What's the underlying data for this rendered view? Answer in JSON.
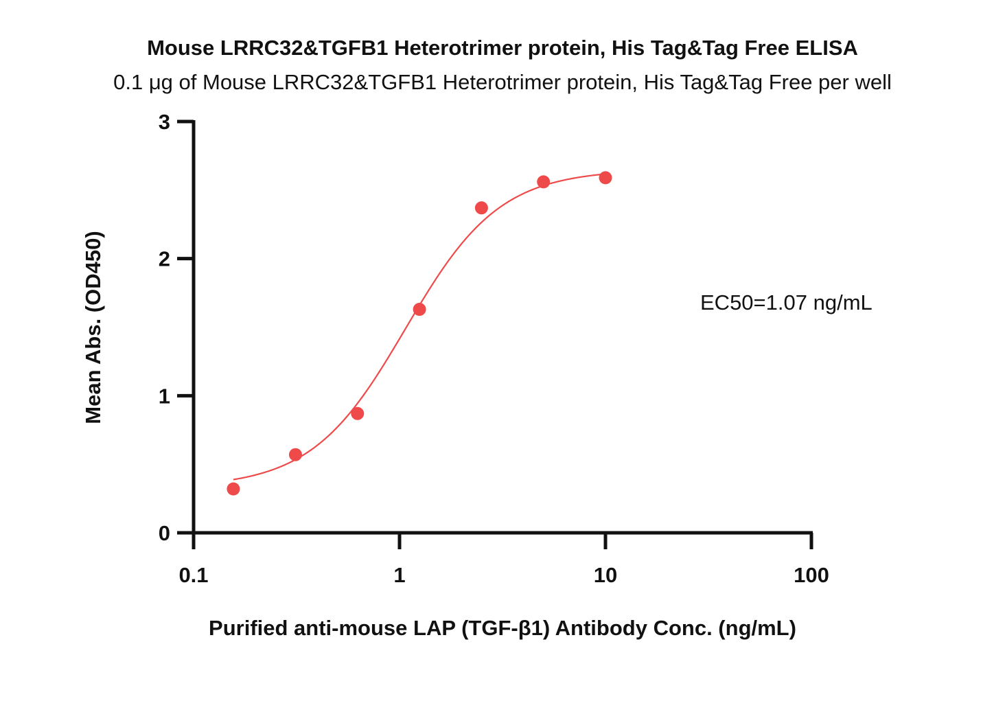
{
  "chart_data": {
    "type": "scatter",
    "title": "Mouse LRRC32&TGFB1 Heterotrimer protein, His Tag&Tag Free ELISA",
    "subtitle": "0.1 μg of Mouse LRRC32&TGFB1 Heterotrimer protein, His Tag&Tag Free per well",
    "xlabel": "Purified anti-mouse LAP (TGF-β1) Antibody Conc. (ng/mL)",
    "ylabel": "Mean Abs. (OD450)",
    "x_scale": "log",
    "xlim": [
      0.1,
      100
    ],
    "ylim": [
      0,
      3
    ],
    "x_ticks": [
      0.1,
      1,
      10,
      100
    ],
    "x_tick_labels": [
      "0.1",
      "1",
      "10",
      "100"
    ],
    "y_ticks": [
      0,
      1,
      2,
      3
    ],
    "y_tick_labels": [
      "0",
      "1",
      "2",
      "3"
    ],
    "grid": false,
    "series": [
      {
        "color": "#ef4a4a",
        "x": [
          0.156,
          0.3125,
          0.625,
          1.25,
          2.5,
          5,
          10
        ],
        "y": [
          0.32,
          0.57,
          0.87,
          1.63,
          2.37,
          2.56,
          2.59
        ],
        "fit": "four-parameter logistic curve"
      }
    ],
    "annotation": "EC50=1.07 ng/mL"
  }
}
